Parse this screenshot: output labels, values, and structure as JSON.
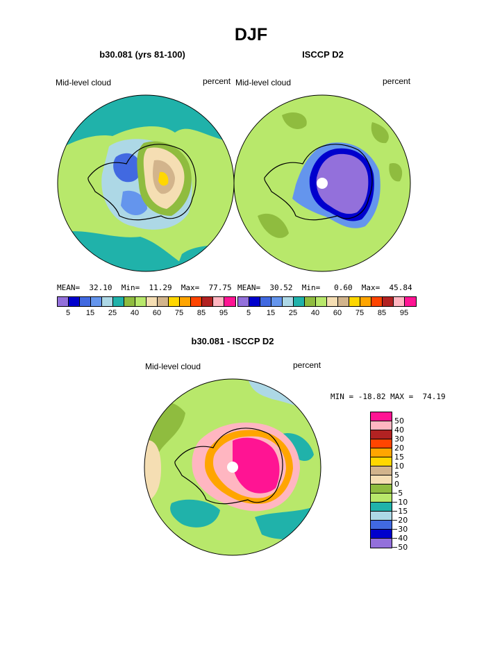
{
  "main_title": "DJF",
  "panels": [
    {
      "title": "b30.081 (yrs 81-100)",
      "variable": "Mid-level cloud",
      "units": "percent",
      "stats": "MEAN=  32.10  Min=  11.29  Max=  77.75"
    },
    {
      "title": "ISCCP D2",
      "variable": "Mid-level cloud",
      "units": "percent",
      "stats": "MEAN=  30.52  Min=   0.60  Max=  45.84"
    }
  ],
  "top_colorbar": {
    "colors": [
      "#9370db",
      "#0000cd",
      "#4169e1",
      "#6495ed",
      "#add8e6",
      "#20b2aa",
      "#8fbc3f",
      "#b8e86b",
      "#f5deb3",
      "#d2b48c",
      "#ffd700",
      "#ffa500",
      "#ff4500",
      "#b22222",
      "#ffb6c1",
      "#ff1493"
    ],
    "labels": [
      "5",
      "15",
      "25",
      "40",
      "60",
      "75",
      "85",
      "95"
    ]
  },
  "diff_panel": {
    "title": "b30.081 - ISCCP D2",
    "variable": "Mid-level cloud",
    "units": "percent",
    "stats": "MIN = -18.82 MAX =  74.19"
  },
  "diff_colorbar": {
    "colors": [
      "#ff1493",
      "#ffb6c1",
      "#b22222",
      "#ff4500",
      "#ffa500",
      "#ffd700",
      "#d2b48c",
      "#f5deb3",
      "#8fbc3f",
      "#b8e86b",
      "#20b2aa",
      "#add8e6",
      "#4169e1",
      "#0000cd",
      "#9370db"
    ],
    "labels": [
      "50",
      "40",
      "30",
      "20",
      "15",
      "10",
      "5",
      "0",
      "−5",
      "−10",
      "−15",
      "−20",
      "−30",
      "−40",
      "−50"
    ]
  }
}
